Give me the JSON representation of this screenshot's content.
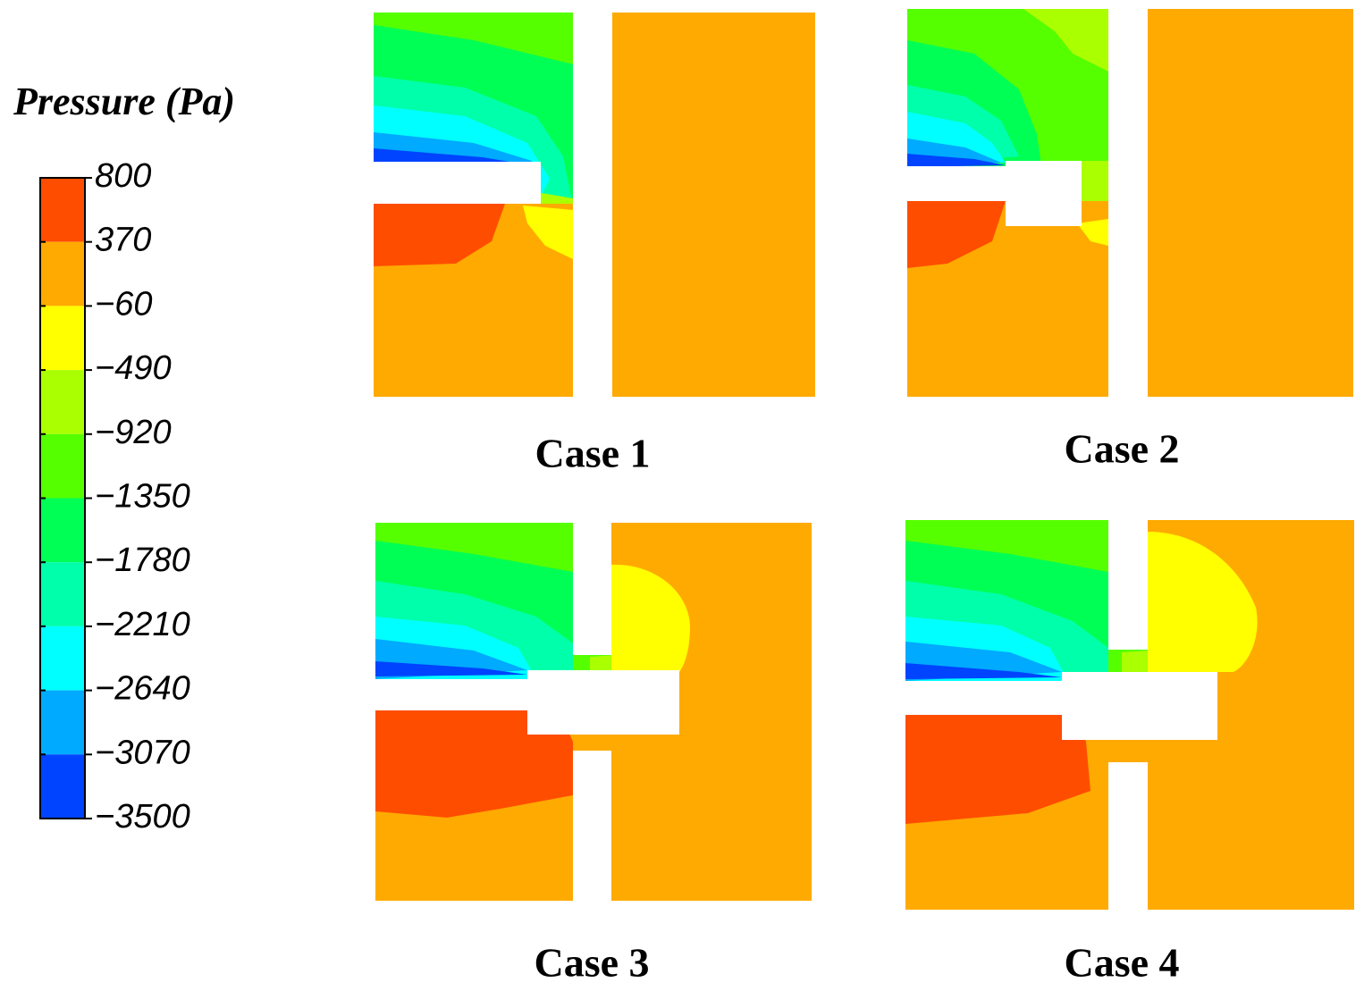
{
  "legend": {
    "title": "Pressure (Pa)",
    "levels": [
      800,
      370,
      {
        "value": -60,
        "label": "−60"
      },
      {
        "value": -490,
        "label": "−490"
      },
      {
        "value": -920,
        "label": "−920"
      },
      {
        "value": -1350,
        "label": "−1350"
      },
      {
        "value": -1780,
        "label": "−1780"
      },
      {
        "value": -2210,
        "label": "−2210"
      },
      {
        "value": -2640,
        "label": "−2640"
      },
      {
        "value": -3070,
        "label": "−3070"
      },
      {
        "value": -3500,
        "label": "−3500"
      }
    ],
    "colors": [
      "#ff4d00",
      "#ffaa00",
      "#ffff00",
      "#aaff00",
      "#55ff00",
      "#00ff55",
      "#00ffaa",
      "#00ffff",
      "#00aaff",
      "#0044ff"
    ]
  },
  "panels": [
    {
      "label": "Case 1"
    },
    {
      "label": "Case 2"
    },
    {
      "label": "Case 3"
    },
    {
      "label": "Case 4"
    }
  ]
}
